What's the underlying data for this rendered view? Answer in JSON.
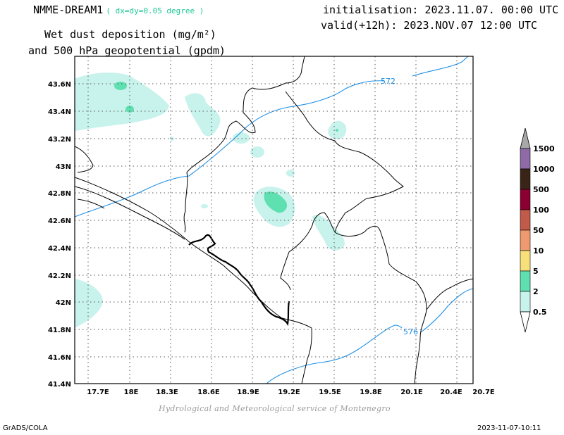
{
  "header": {
    "model": "NMME-DREAM1",
    "resolution": "( dx=dy=0.05 degree )",
    "variable_line1": "Wet dust deposition (mg/m²)",
    "variable_line2": "and 500 hPa geopotential (gpdm)",
    "initialisation": "initialisation: 2023.11.07. 00:00 UTC",
    "valid": "valid(+12h): 2023.NOV.07 12:00 UTC"
  },
  "map": {
    "lat_labels": [
      "43.6N",
      "43.4N",
      "43.2N",
      "43N",
      "42.8N",
      "42.6N",
      "42.4N",
      "42.2N",
      "42N",
      "41.8N",
      "41.6N",
      "41.4N"
    ],
    "lat_values": [
      43.6,
      43.4,
      43.2,
      43.0,
      42.8,
      42.6,
      42.4,
      42.2,
      42.0,
      41.8,
      41.6,
      41.4
    ],
    "lon_labels": [
      "17.7E",
      "18E",
      "18.3E",
      "18.6E",
      "18.9E",
      "19.2E",
      "19.5E",
      "19.8E",
      "20.1E",
      "20.4E",
      "20.7E"
    ],
    "lon_values": [
      17.7,
      18.0,
      18.3,
      18.6,
      18.9,
      19.2,
      19.5,
      19.8,
      20.1,
      20.4,
      20.7
    ],
    "contours": [
      {
        "label": "572",
        "color": "#1e90e6"
      },
      {
        "label": "576",
        "color": "#1e90e6"
      }
    ],
    "grid": true
  },
  "legend": {
    "levels": [
      "0.5",
      "2",
      "5",
      "10",
      "50",
      "100",
      "500",
      "1000",
      "1500"
    ],
    "colors": [
      "#c8f2ec",
      "#5ee0b0",
      "#f7e07a",
      "#ef9a6e",
      "#c25a4a",
      "#8b0030",
      "#3a2418",
      "#8e6aa6",
      "#a8a8a8"
    ]
  },
  "footer": {
    "credit": "Hydrological and Meteorological service of Montenegro",
    "left": "GrADS/COLA",
    "right": "2023-11-07-10:11"
  }
}
